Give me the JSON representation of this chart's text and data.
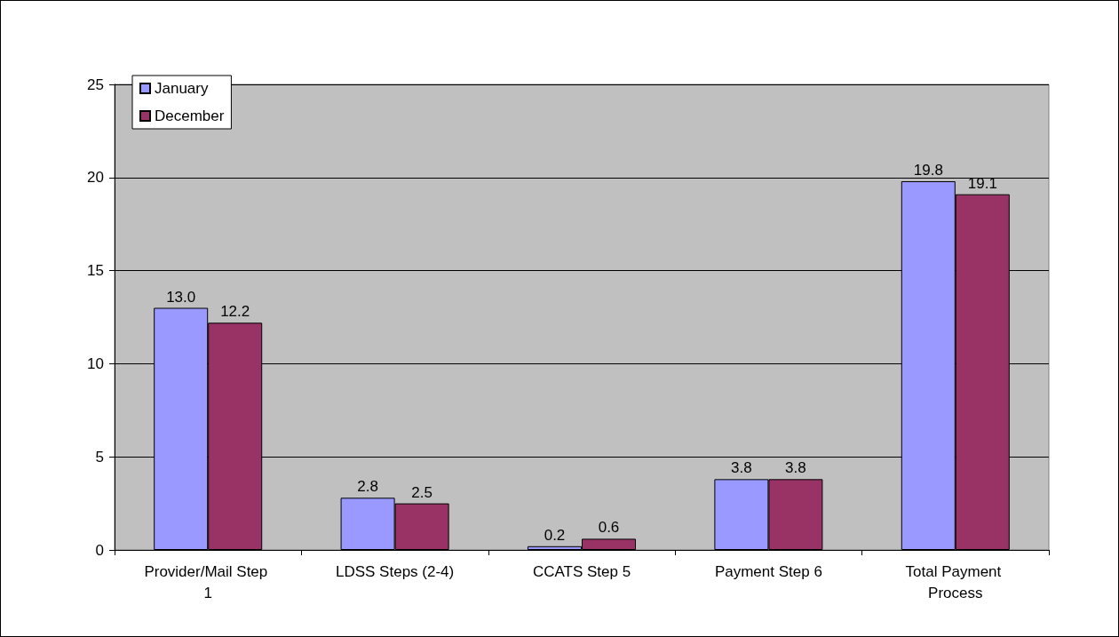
{
  "chart_data": {
    "type": "bar",
    "categories": [
      "Provider/Mail Step 1",
      "LDSS Steps (2-4)",
      "CCATS Step 5",
      "Payment Step 6",
      "Total Payment Process"
    ],
    "series": [
      {
        "name": "January",
        "color": "#9999ff",
        "values": [
          13.0,
          2.8,
          0.2,
          3.8,
          19.8
        ],
        "value_labels": [
          "13.0",
          "2.8",
          "0.2",
          "3.8",
          "19.8"
        ]
      },
      {
        "name": "December",
        "color": "#993366",
        "values": [
          12.2,
          2.5,
          0.6,
          3.8,
          19.1
        ],
        "value_labels": [
          "12.2",
          "2.5",
          "0.6",
          "3.8",
          "19.1"
        ]
      }
    ],
    "ylim": [
      0,
      25
    ],
    "yticks": [
      0,
      5,
      10,
      15,
      20,
      25
    ],
    "grid": "y",
    "legend": "top left"
  }
}
